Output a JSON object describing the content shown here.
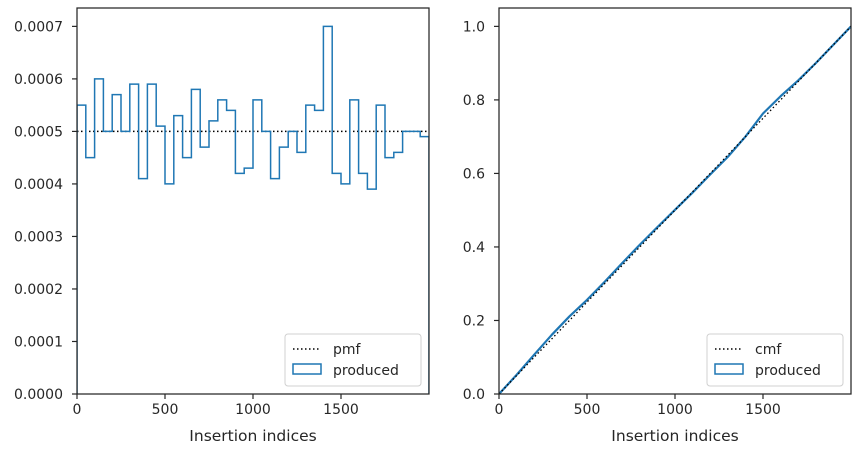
{
  "chart_data": [
    {
      "type": "histogram-step",
      "xlabel": "Insertion indices",
      "ylabel": "",
      "xlim": [
        0,
        2000
      ],
      "ylim": [
        0,
        0.000735
      ],
      "xticks": [
        0,
        500,
        1000,
        1500
      ],
      "xtick_labels": [
        "0",
        "500",
        "1000",
        "1500"
      ],
      "yticks": [
        0,
        0.0001,
        0.0002,
        0.0003,
        0.0004,
        0.0005,
        0.0006,
        0.0007
      ],
      "ytick_labels": [
        "0.0000",
        "0.0001",
        "0.0002",
        "0.0003",
        "0.0004",
        "0.0005",
        "0.0006",
        "0.0007"
      ],
      "bin_width": 50,
      "series": [
        {
          "name": "pmf",
          "style": "dotted",
          "color": "#000000",
          "y": 0.0005
        },
        {
          "name": "produced",
          "style": "step",
          "color": "#1f77b4",
          "values": [
            0.00055,
            0.00045,
            0.0006,
            0.0005,
            0.00057,
            0.0005,
            0.00059,
            0.00041,
            0.00059,
            0.00051,
            0.0004,
            0.00053,
            0.00045,
            0.00058,
            0.00047,
            0.00052,
            0.00056,
            0.00054,
            0.00042,
            0.00043,
            0.00056,
            0.0005,
            0.00041,
            0.00047,
            0.0005,
            0.00046,
            0.00055,
            0.00054,
            0.0007,
            0.00042,
            0.0004,
            0.00056,
            0.00042,
            0.00039,
            0.00055,
            0.00045,
            0.00046,
            0.0005,
            0.0005,
            0.00049
          ]
        }
      ],
      "legend": {
        "position": "lower right",
        "entries": [
          "pmf",
          "produced"
        ]
      }
    },
    {
      "type": "line-step",
      "xlabel": "Insertion indices",
      "ylabel": "",
      "xlim": [
        0,
        2000
      ],
      "ylim": [
        0,
        1.05
      ],
      "xticks": [
        0,
        500,
        1000,
        1500
      ],
      "xtick_labels": [
        "0",
        "500",
        "1000",
        "1500"
      ],
      "yticks": [
        0,
        0.2,
        0.4,
        0.6,
        0.8,
        1.0
      ],
      "ytick_labels": [
        "0.0",
        "0.2",
        "0.4",
        "0.6",
        "0.8",
        "1.0"
      ],
      "series": [
        {
          "name": "cmf",
          "style": "dotted",
          "color": "#000000",
          "x": [
            0,
            2000
          ],
          "y": [
            0,
            1.0
          ]
        },
        {
          "name": "produced",
          "style": "line",
          "color": "#1f77b4",
          "x": [
            0,
            100,
            200,
            300,
            400,
            500,
            600,
            700,
            800,
            900,
            1000,
            1100,
            1200,
            1300,
            1400,
            1500,
            1600,
            1700,
            1800,
            1900,
            2000
          ],
          "y": [
            0,
            0.052,
            0.107,
            0.161,
            0.211,
            0.256,
            0.305,
            0.356,
            0.406,
            0.454,
            0.501,
            0.548,
            0.597,
            0.645,
            0.7,
            0.763,
            0.81,
            0.853,
            0.9,
            0.95,
            1.0
          ]
        }
      ],
      "legend": {
        "position": "lower right",
        "entries": [
          "cmf",
          "produced"
        ]
      }
    }
  ]
}
